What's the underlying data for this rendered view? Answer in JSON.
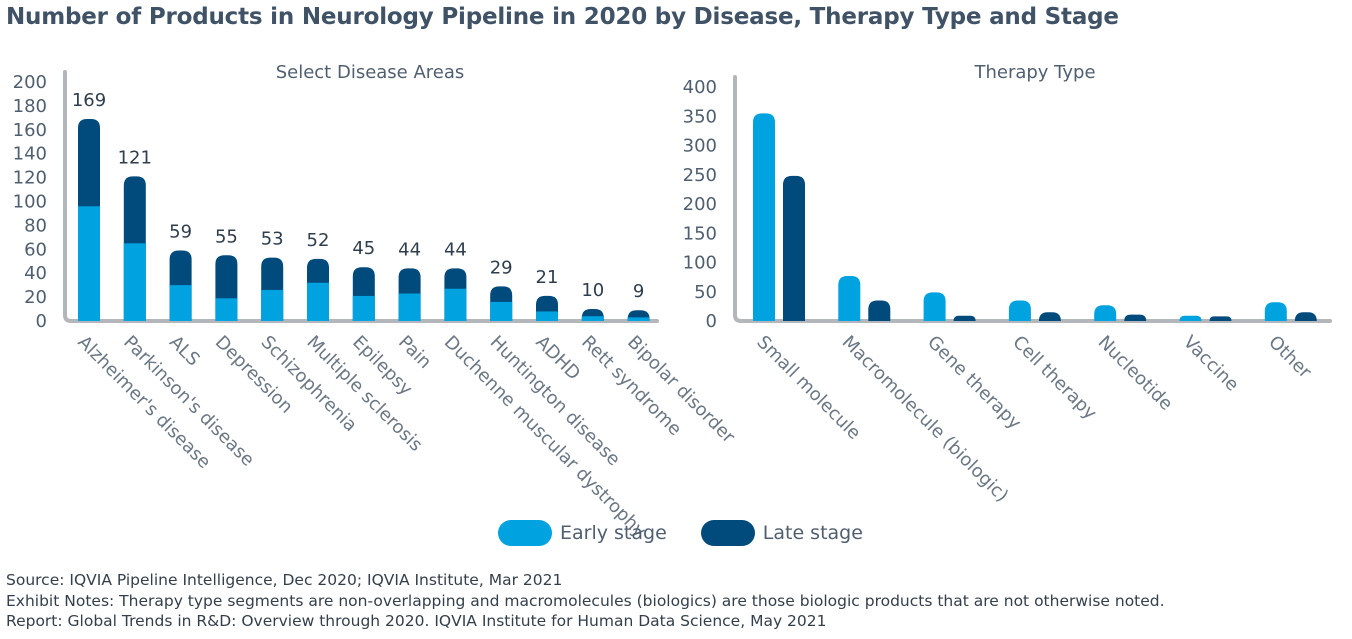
{
  "title": "Number of Products in Neurology Pipeline in 2020 by Disease, Therapy Type and Stage",
  "colors": {
    "early": "#00a3e0",
    "late": "#004a7c",
    "axis": "#b3b7bb",
    "text": "#4f5f70"
  },
  "legend": {
    "early_label": "Early stage",
    "late_label": "Late stage"
  },
  "notes": {
    "source": "Source: IQVIA Pipeline Intelligence, Dec 2020; IQVIA Institute, Mar 2021",
    "exhibit": "Exhibit Notes: Therapy type segments are non-overlapping and macromolecules (biologics) are those biologic products that are not otherwise noted.",
    "report": "Report: Global Trends in R&D: Overview through 2020. IQVIA Institute for Human Data Science, May 2021"
  },
  "chart_data": [
    {
      "type": "bar",
      "stacked": true,
      "title": "Select Disease Areas",
      "categories": [
        "Alzheimer's disease",
        "Parkinson's disease",
        "ALS",
        "Depression",
        "Schizophrenia",
        "Multiple sclerosis",
        "Epilepsy",
        "Pain",
        "Duchenne muscular dystrophy",
        "Huntington disease",
        "ADHD",
        "Rett syndrome",
        "Bipolar disorder"
      ],
      "series": [
        {
          "name": "Early stage",
          "values": [
            96,
            65,
            30,
            19,
            26,
            32,
            21,
            23,
            27,
            16,
            8,
            4,
            3
          ]
        },
        {
          "name": "Late stage",
          "values": [
            73,
            56,
            29,
            36,
            27,
            20,
            24,
            21,
            17,
            13,
            13,
            6,
            6
          ]
        }
      ],
      "totals": [
        169,
        121,
        59,
        55,
        53,
        52,
        45,
        44,
        44,
        29,
        21,
        10,
        9
      ],
      "ylim": [
        0,
        200
      ],
      "yticks": [
        0,
        20,
        40,
        60,
        80,
        100,
        120,
        140,
        160,
        180,
        200
      ]
    },
    {
      "type": "bar",
      "stacked": false,
      "title": "Therapy Type",
      "categories": [
        "Small molecule",
        "Macromolecule (biologic)",
        "Gene therapy",
        "Cell therapy",
        "Nucleotide",
        "Vaccine",
        "Other"
      ],
      "series": [
        {
          "name": "Early stage",
          "values": [
            355,
            77,
            49,
            35,
            27,
            9,
            32
          ]
        },
        {
          "name": "Late stage",
          "values": [
            248,
            35,
            9,
            15,
            11,
            8,
            15
          ]
        }
      ],
      "ylim": [
        0,
        400
      ],
      "yticks": [
        0,
        50,
        100,
        150,
        200,
        250,
        300,
        350,
        400
      ]
    }
  ]
}
